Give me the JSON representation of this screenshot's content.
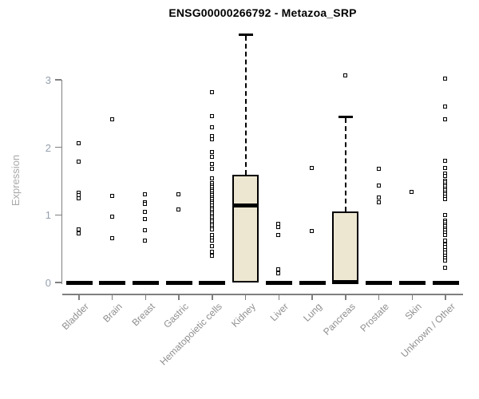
{
  "title": "ENSG00000266792 - Metazoa_SRP",
  "chart_data": {
    "type": "boxplot",
    "title": "ENSG00000266792 - Metazoa_SRP",
    "xlabel": "",
    "ylabel": "Expression",
    "yticks": [
      0,
      1,
      2,
      3
    ],
    "ylim": [
      0,
      3.8
    ],
    "grid": false,
    "legend": "none",
    "colors": {
      "box_fill": "#ede7d1",
      "box_stroke": "#000000",
      "axis": "#7f7f7f",
      "ytick_label": "#95a0ad",
      "xtick_label": "#8f8f8f",
      "axis_title": "#a9a9a9",
      "title": "#000000"
    },
    "categories": [
      "Bladder",
      "Brain",
      "Breast",
      "Gastric",
      "Hematopoietic cells",
      "Kidney",
      "Liver",
      "Lung",
      "Pancreas",
      "Prostate",
      "Skin",
      "Unknown / Other"
    ],
    "series": [
      {
        "category": "Bladder",
        "q1": 0,
        "median": 0,
        "q3": 0,
        "whisker_low": 0,
        "whisker_high": 0,
        "outliers": [
          2.06,
          1.79,
          1.33,
          1.29,
          1.25,
          0.78,
          0.73
        ]
      },
      {
        "category": "Brain",
        "q1": 0,
        "median": 0,
        "q3": 0,
        "whisker_low": 0,
        "whisker_high": 0,
        "outliers": [
          2.42,
          1.28,
          0.97,
          0.65
        ]
      },
      {
        "category": "Breast",
        "q1": 0,
        "median": 0,
        "q3": 0,
        "whisker_low": 0,
        "whisker_high": 0,
        "outliers": [
          1.3,
          1.19,
          1.16,
          1.05,
          0.94,
          0.77,
          0.62
        ]
      },
      {
        "category": "Gastric",
        "q1": 0,
        "median": 0,
        "q3": 0,
        "whisker_low": 0,
        "whisker_high": 0,
        "outliers": [
          1.3,
          1.08
        ]
      },
      {
        "category": "Hematopoietic cells",
        "q1": 0,
        "median": 0,
        "q3": 0,
        "whisker_low": 0,
        "whisker_high": 0,
        "outliers": [
          2.82,
          2.46,
          2.3,
          2.17,
          2.12,
          1.93,
          1.86,
          1.75,
          1.68,
          1.54,
          1.47,
          1.44,
          1.41,
          1.38,
          1.35,
          1.32,
          1.29,
          1.26,
          1.23,
          1.2,
          1.17,
          1.14,
          1.11,
          1.08,
          1.05,
          1.02,
          0.99,
          0.96,
          0.93,
          0.9,
          0.87,
          0.84,
          0.81,
          0.78,
          0.7,
          0.66,
          0.62,
          0.54,
          0.46,
          0.4
        ]
      },
      {
        "category": "Kidney",
        "q1": 0,
        "median": 1.13,
        "q3": 1.59,
        "whisker_low": 0,
        "whisker_high": 3.67,
        "outliers": []
      },
      {
        "category": "Liver",
        "q1": 0,
        "median": 0,
        "q3": 0,
        "whisker_low": 0,
        "whisker_high": 0,
        "outliers": [
          0.87,
          0.82,
          0.7,
          0.2,
          0.14
        ]
      },
      {
        "category": "Lung",
        "q1": 0,
        "median": 0,
        "q3": 0,
        "whisker_low": 0,
        "whisker_high": 0,
        "outliers": [
          1.69,
          0.76
        ]
      },
      {
        "category": "Pancreas",
        "q1": 0,
        "median": 0,
        "q3": 1.05,
        "whisker_low": 0,
        "whisker_high": 2.46,
        "outliers": [
          3.07
        ]
      },
      {
        "category": "Prostate",
        "q1": 0,
        "median": 0,
        "q3": 0,
        "whisker_low": 0,
        "whisker_high": 0,
        "outliers": [
          1.68,
          1.44,
          1.26,
          1.19
        ]
      },
      {
        "category": "Skin",
        "q1": 0,
        "median": 0,
        "q3": 0,
        "whisker_low": 0,
        "whisker_high": 0,
        "outliers": [
          1.34
        ]
      },
      {
        "category": "Unknown / Other",
        "q1": 0,
        "median": 0,
        "q3": 0,
        "whisker_low": 0,
        "whisker_high": 0,
        "outliers": [
          3.02,
          2.61,
          2.41,
          1.8,
          1.69,
          1.61,
          1.58,
          1.51,
          1.48,
          1.45,
          1.42,
          1.39,
          1.36,
          1.33,
          1.3,
          1.27,
          1.24,
          1.0,
          0.92,
          0.89,
          0.86,
          0.83,
          0.8,
          0.77,
          0.74,
          0.7,
          0.62,
          0.56,
          0.52,
          0.48,
          0.44,
          0.4,
          0.36,
          0.32,
          0.22
        ]
      }
    ]
  }
}
